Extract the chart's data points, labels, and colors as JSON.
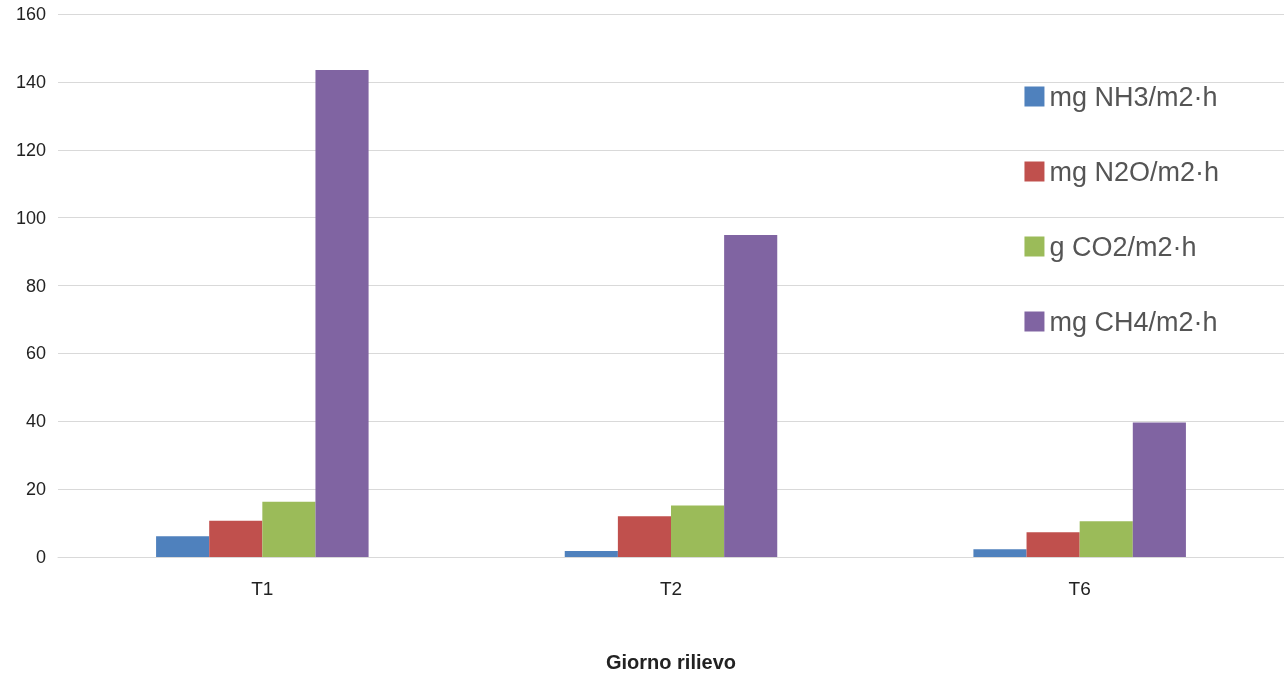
{
  "chart_data": {
    "type": "bar",
    "xlabel": "Giorno rilievo",
    "categories": [
      "T1",
      "T2",
      "T6"
    ],
    "series": [
      {
        "name": "mg NH3/m2·h",
        "color": "#4f81bd",
        "values": [
          6.1,
          1.8,
          2.3
        ]
      },
      {
        "name": "mg N2O/m2·h",
        "color": "#c0504d",
        "values": [
          10.7,
          12.0,
          7.3
        ]
      },
      {
        "name": "g CO2/m2·h",
        "color": "#9bbb59",
        "values": [
          16.3,
          15.2,
          10.5
        ]
      },
      {
        "name": "mg CH4/m2·h",
        "color": "#8064a2",
        "values": [
          143.5,
          94.9,
          39.6
        ]
      }
    ],
    "ylim": [
      0,
      160
    ],
    "yticks": [
      0,
      20,
      40,
      60,
      80,
      100,
      120,
      140,
      160
    ],
    "grid": "y",
    "legend": "top right"
  }
}
